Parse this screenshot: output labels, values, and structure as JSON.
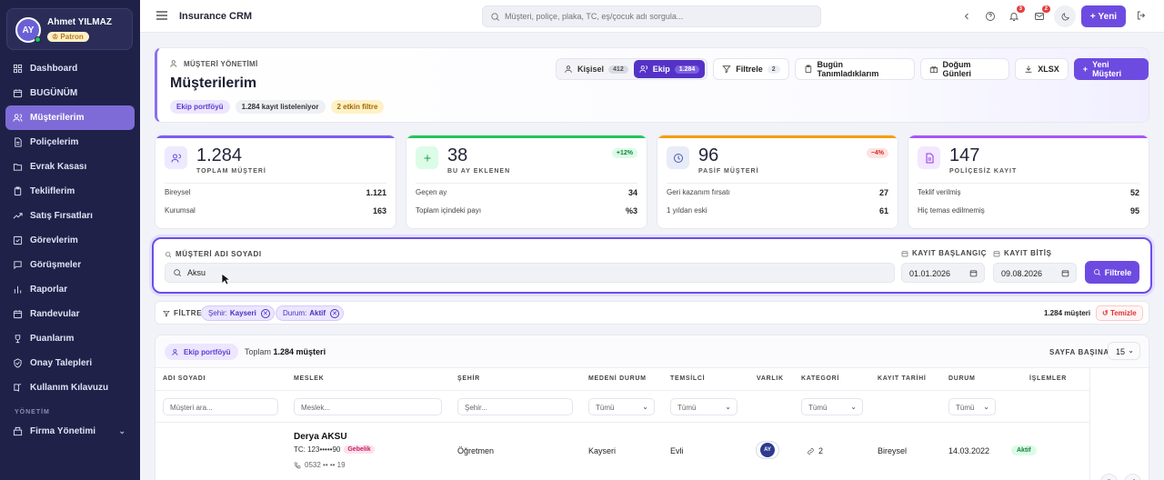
{
  "user": {
    "initials": "AY",
    "name": "Ahmet YILMAZ",
    "role": "Patron"
  },
  "nav": [
    {
      "label": "Dashboard",
      "icon": "grid-icon"
    },
    {
      "label": "BUGÜNÜM",
      "icon": "calendar-icon"
    },
    {
      "label": "Müşterilerim",
      "icon": "users-icon",
      "active": true
    },
    {
      "label": "Poliçelerim",
      "icon": "document-icon"
    },
    {
      "label": "Evrak Kasası",
      "icon": "folder-icon"
    },
    {
      "label": "Tekliflerim",
      "icon": "clipboard-icon"
    },
    {
      "label": "Satış Fırsatları",
      "icon": "trend-icon"
    },
    {
      "label": "Görevlerim",
      "icon": "check-square-icon"
    },
    {
      "label": "Görüşmeler",
      "icon": "chat-icon"
    },
    {
      "label": "Raporlar",
      "icon": "bar-chart-icon"
    },
    {
      "label": "Randevular",
      "icon": "calendar-icon"
    },
    {
      "label": "Puanlarım",
      "icon": "trophy-icon"
    },
    {
      "label": "Onay Talepleri",
      "icon": "shield-check-icon"
    },
    {
      "label": "Kullanım Kılavuzu",
      "icon": "book-icon"
    }
  ],
  "nav_section": "YÖNETİM",
  "nav_admin": {
    "label": "Firma Yönetimi",
    "icon": "building-icon"
  },
  "topbar": {
    "title": "Insurance CRM",
    "search_placeholder": "Müşteri, poliçe, plaka, TC, eş/çocuk adı sorgula...",
    "notif_count": "3",
    "mail_count": "2",
    "new_label": "Yeni"
  },
  "header": {
    "kicker": "MÜŞTERİ YÖNETİMİ",
    "title": "Müşterilerim",
    "chips": [
      "Ekip portföyü",
      "1.284 kayıt listeleniyor",
      "2 etkin filtre"
    ],
    "seg_personal": "Kişisel",
    "seg_personal_count": "412",
    "seg_team": "Ekip",
    "seg_team_count": "1.284",
    "filter_label": "Filtrele",
    "filter_count": "2",
    "today_label": "Bugün Tanımladıklarım",
    "birthday_label": "Doğum Günleri",
    "xlsx_label": "XLSX",
    "new_customer_label": "Yeni Müşteri"
  },
  "stats": [
    {
      "value": "1.284",
      "label": "TOPLAM MÜŞTERİ",
      "color": "#7c5cf0",
      "icon": "users-icon",
      "delta": "",
      "rows": [
        {
          "k": "Bireysel",
          "v": "1.121"
        },
        {
          "k": "Kurumsal",
          "v": "163"
        }
      ]
    },
    {
      "value": "38",
      "label": "BU AY EKLENEN",
      "color": "#22c55e",
      "icon": "plus-icon",
      "delta": "+12%",
      "rows": [
        {
          "k": "Geçen ay",
          "v": "34"
        },
        {
          "k": "Toplam içindeki payı",
          "v": "%3"
        }
      ]
    },
    {
      "value": "96",
      "label": "PASİF MÜŞTERİ",
      "color": "#f59e0b",
      "icon": "clock-icon",
      "delta": "−4%",
      "rows": [
        {
          "k": "Geri kazanım fırsatı",
          "v": "27"
        },
        {
          "k": "1 yıldan eski",
          "v": "61"
        }
      ]
    },
    {
      "value": "147",
      "label": "POLİÇESİZ KAYIT",
      "color": "#a855f7",
      "icon": "file-icon",
      "delta": "",
      "rows": [
        {
          "k": "Teklif verilmiş",
          "v": "52"
        },
        {
          "k": "Hiç temas edilmemiş",
          "v": "95"
        }
      ]
    }
  ],
  "filter": {
    "name_label": "MÜŞTERİ ADI SOYADI",
    "name_value": "Aksu",
    "start_label": "KAYIT BAŞLANGIÇ",
    "start_value": "01.01.2026",
    "end_label": "KAYIT BİTİŞ",
    "end_value": "09.08.2026",
    "button": "Filtrele"
  },
  "chipbar": {
    "label": "FİLTRE",
    "chips": [
      {
        "k": "Şehir:",
        "v": "Kayseri"
      },
      {
        "k": "Durum:",
        "v": "Aktif"
      }
    ],
    "count": "1.284 müşteri",
    "clear": "Temizle"
  },
  "table": {
    "pill": "Ekip portföyü",
    "total_prefix": "Toplam",
    "total_value": "1.284 müşteri",
    "per_page_label": "SAYFA BAŞINA",
    "per_page": "15",
    "headers": [
      "ADI SOYADI",
      "MESLEK",
      "ŞEHİR",
      "MEDENİ DURUM",
      "TEMSİLCİ",
      "VARLIK",
      "KATEGORİ",
      "KAYIT TARİHİ",
      "DURUM",
      "İŞLEMLER"
    ],
    "filters": {
      "name": "Müşteri ara...",
      "job": "Meslek...",
      "city": "Şehir...",
      "marital": "Tümü",
      "rep": "Tümü",
      "category": "Tümü",
      "status": "Tümü"
    },
    "rows": [
      {
        "name": "Derya AKSU",
        "tc": "TC: 123•••••90",
        "tag": "Gebelik",
        "phone": "0532 •• •• 19",
        "job": "Öğretmen",
        "city": "Kayseri",
        "marital": "Evli",
        "asset": "AY",
        "category": "2",
        "type": "Bireysel",
        "date": "14.03.2022",
        "status": "Aktif"
      }
    ]
  }
}
